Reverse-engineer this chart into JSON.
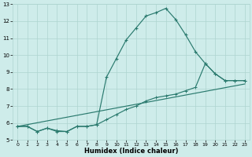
{
  "xlabel": "Humidex (Indice chaleur)",
  "bg_color": "#ceecea",
  "grid_color": "#aed4d0",
  "line_color": "#2a7a6e",
  "xlim": [
    -0.5,
    23.5
  ],
  "ylim": [
    5,
    13
  ],
  "xticks": [
    0,
    1,
    2,
    3,
    4,
    5,
    6,
    7,
    8,
    9,
    10,
    11,
    12,
    13,
    14,
    15,
    16,
    17,
    18,
    19,
    20,
    21,
    22,
    23
  ],
  "yticks": [
    5,
    6,
    7,
    8,
    9,
    10,
    11,
    12,
    13
  ],
  "series1_x": [
    0,
    1,
    2,
    3,
    4,
    5,
    6,
    7,
    8,
    9,
    10,
    11,
    12,
    13,
    14,
    15,
    16,
    17,
    18,
    19,
    20,
    21,
    22,
    23
  ],
  "series1_y": [
    5.8,
    5.8,
    5.5,
    5.7,
    5.5,
    5.5,
    5.8,
    5.8,
    5.9,
    8.7,
    9.8,
    10.9,
    11.6,
    12.3,
    12.5,
    12.75,
    12.1,
    11.2,
    10.2,
    9.5,
    8.9,
    8.5,
    8.5,
    8.5
  ],
  "series2_x": [
    0,
    1,
    2,
    3,
    4,
    5,
    6,
    7,
    8,
    9,
    10,
    11,
    12,
    13,
    14,
    15,
    16,
    17,
    18,
    19,
    20,
    21,
    22,
    23
  ],
  "series2_y": [
    5.8,
    5.8,
    5.5,
    5.7,
    5.55,
    5.5,
    5.8,
    5.8,
    5.9,
    6.2,
    6.5,
    6.8,
    7.0,
    7.3,
    7.5,
    7.6,
    7.7,
    7.9,
    8.1,
    9.5,
    8.9,
    8.5,
    8.5,
    8.5
  ],
  "series3_x": [
    0,
    23
  ],
  "series3_y": [
    5.8,
    8.3
  ]
}
